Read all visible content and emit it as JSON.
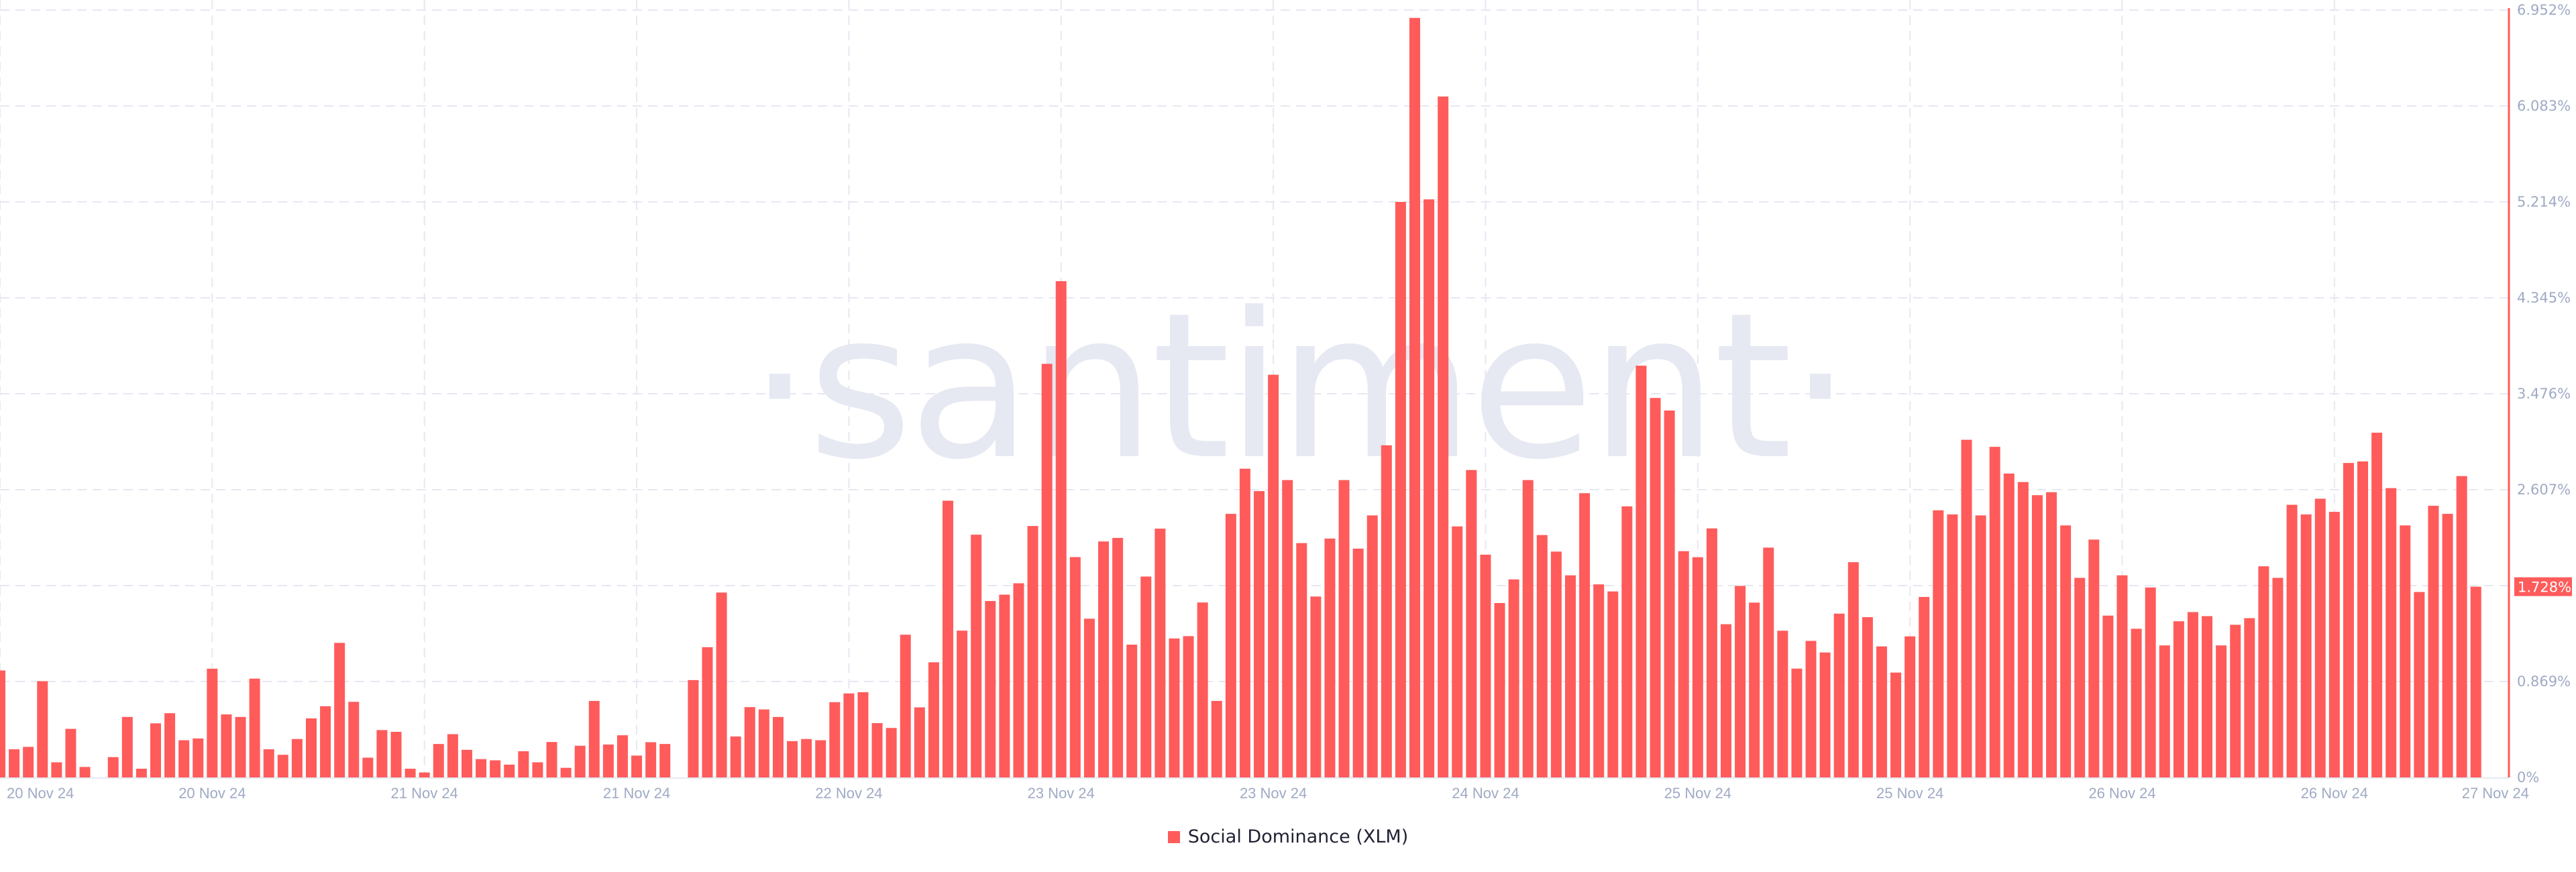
{
  "chart_data": {
    "type": "bar",
    "title": "",
    "xlabel": "",
    "ylabel": "",
    "series": [
      {
        "name": "Social Dominance (XLM)",
        "color": "#ff5b5b",
        "unit": "%",
        "values": [
          0.969,
          0.255,
          0.277,
          0.872,
          0.137,
          0.44,
          0.095,
          0,
          0.184,
          0.548,
          0.079,
          0.49,
          0.582,
          0.337,
          0.353,
          0.985,
          0.571,
          0.548,
          0.895,
          0.255,
          0.205,
          0.348,
          0.535,
          0.645,
          1.219,
          0.685,
          0.179,
          0.429,
          0.413,
          0.079,
          0.045,
          0.303,
          0.392,
          0.25,
          0.166,
          0.155,
          0.116,
          0.237,
          0.137,
          0.321,
          0.087,
          0.287,
          0.693,
          0.298,
          0.382,
          0.198,
          0.319,
          0.303,
          0,
          0.882,
          1.18,
          1.675,
          0.371,
          0.637,
          0.616,
          0.548,
          0.329,
          0.348,
          0.337,
          0.682,
          0.761,
          0.772,
          0.492,
          0.448,
          1.293,
          0.635,
          1.043,
          2.507,
          1.33,
          2.199,
          1.598,
          1.656,
          1.759,
          2.278,
          3.747,
          4.496,
          1.996,
          1.438,
          2.138,
          2.17,
          1.203,
          1.82,
          2.254,
          1.259,
          1.28,
          1.585,
          0.693,
          2.388,
          2.797,
          2.594,
          3.648,
          2.694,
          2.123,
          1.639,
          2.164,
          2.694,
          2.073,
          2.374,
          3.009,
          5.214,
          6.881,
          5.237,
          6.169,
          2.274,
          2.785,
          2.018,
          1.58,
          1.794,
          2.694,
          2.196,
          2.046,
          1.831,
          2.575,
          1.749,
          1.685,
          2.456,
          3.73,
          3.438,
          3.324,
          2.05,
          1.995,
          2.256,
          1.388,
          1.735,
          1.584,
          2.082,
          1.329,
          0.986,
          1.237,
          1.132,
          1.484,
          1.95,
          1.452,
          1.187,
          0.95,
          1.278,
          1.635,
          2.42,
          2.383,
          3.059,
          2.374,
          2.995,
          2.753,
          2.676,
          2.557,
          2.584,
          2.283,
          1.808,
          2.155,
          1.466,
          1.831,
          1.347,
          1.721,
          1.196,
          1.415,
          1.498,
          1.461,
          1.196,
          1.383,
          1.443,
          1.913,
          1.808,
          2.47,
          2.383,
          2.525,
          2.406,
          2.849,
          2.863,
          3.123,
          2.621,
          2.283,
          1.68,
          2.461,
          2.388,
          2.73,
          1.728
        ]
      }
    ],
    "x_tick_labels": [
      "20 Nov 24",
      "20 Nov 24",
      "21 Nov 24",
      "21 Nov 24",
      "22 Nov 24",
      "23 Nov 24",
      "23 Nov 24",
      "24 Nov 24",
      "25 Nov 24",
      "25 Nov 24",
      "26 Nov 24",
      "26 Nov 24",
      "27 Nov 24"
    ],
    "y_tick_labels": [
      "0%",
      "0.869%",
      "1.728%",
      "2.607%",
      "3.476%",
      "4.345%",
      "5.214%",
      "6.083%",
      "6.952%"
    ],
    "ylim": [
      0,
      6.952
    ],
    "y_axis_side": "right",
    "grid": true,
    "last_value_label": "1.728%",
    "legend_position": "bottom-center"
  },
  "legend": {
    "label": "Social Dominance (XLM)",
    "color": "#ff5b5b"
  },
  "watermark": {
    "text": "·santiment·"
  }
}
